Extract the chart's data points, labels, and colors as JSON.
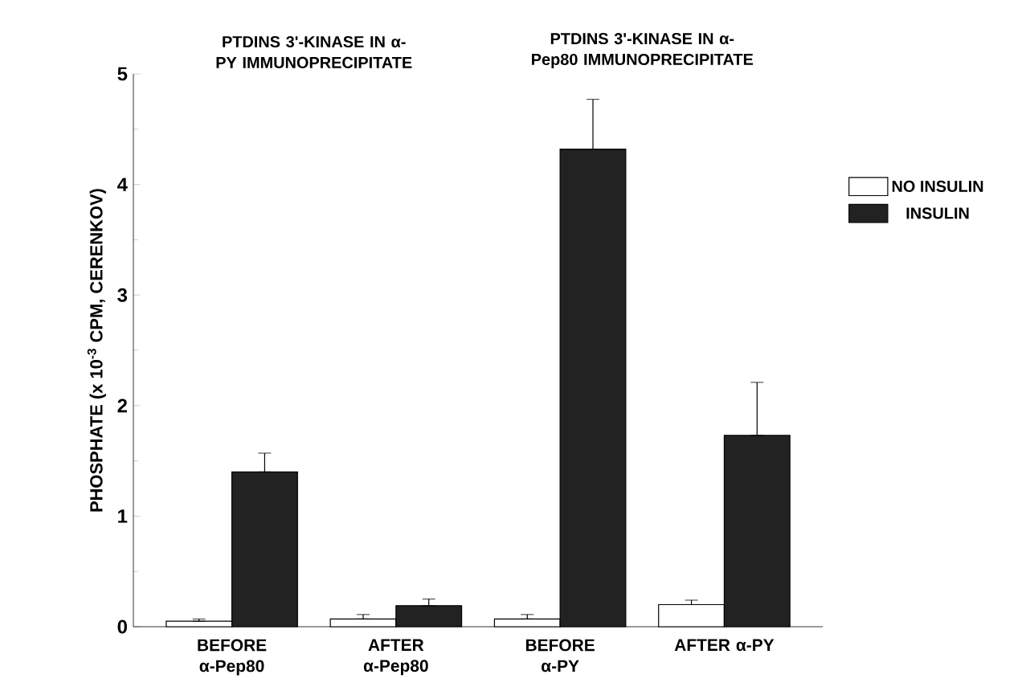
{
  "chart_data": {
    "type": "bar",
    "annotations": [
      "PTDINS 3'-KINASE IN α-PY IMMUNOPRECIPITATE",
      "PTDINS 3'-KINASE IN α-Pep80 IMMUNOPRECIPITATE"
    ],
    "ylabel": "PHOSPHATE (x 10$^{-3}$ CPM, CERENKOV)",
    "categories": [
      "BEFORE α-Pep80",
      "AFTER α-Pep80",
      "BEFORE α-PY",
      "AFTER α-PY"
    ],
    "series": [
      {
        "name": "NO INSULIN",
        "color": "#ffffff",
        "values": [
          0.05,
          0.07,
          0.07,
          0.2
        ],
        "errors": [
          [
            0.05,
            0.07
          ],
          [
            0.07,
            0.11
          ],
          [
            0.07,
            0.11
          ],
          [
            0.2,
            0.24
          ]
        ]
      },
      {
        "name": "INSULIN",
        "color": "#222222",
        "values": [
          1.4,
          0.19,
          4.32,
          1.73
        ],
        "errors": [
          [
            1.4,
            1.57
          ],
          [
            0.19,
            0.25
          ],
          [
            4.32,
            4.77
          ],
          [
            1.73,
            2.21
          ]
        ]
      }
    ],
    "ylim": [
      0,
      5
    ],
    "yticks": [
      0,
      1,
      2,
      3,
      4,
      5
    ],
    "legend": "right"
  }
}
